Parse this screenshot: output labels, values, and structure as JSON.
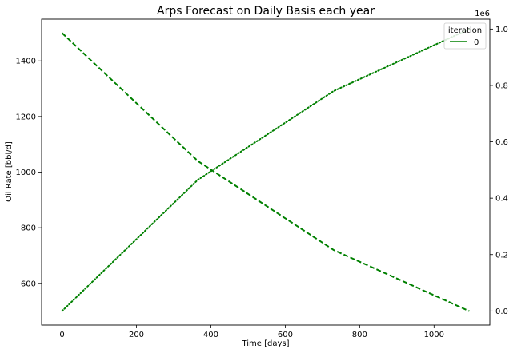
{
  "chart_data": {
    "type": "line",
    "title": "Arps Forecast on Daily Basis each year",
    "xlabel": "Time [days]",
    "ylabel": "Oil Rate [bbl/d]",
    "y2label": "",
    "xlim": [
      -55,
      1150
    ],
    "ylim": [
      450,
      1550
    ],
    "y2lim": [
      -0.05,
      1.035
    ],
    "y2_offset_label": "1e6",
    "xticks": [
      0,
      200,
      400,
      600,
      800,
      1000
    ],
    "yticks": [
      600,
      800,
      1000,
      1200,
      1400
    ],
    "y2ticks": [
      0.0,
      0.2,
      0.4,
      0.6,
      0.8,
      1.0
    ],
    "grid": false,
    "color": "#008000",
    "series": [
      {
        "axis": "left",
        "style": "dashed",
        "x": [
          0,
          365,
          730,
          1095
        ],
        "y": [
          1500,
          1040,
          720,
          500
        ]
      },
      {
        "axis": "right",
        "style": "dotted",
        "x": [
          0,
          365,
          730,
          1095
        ],
        "y": [
          0.0,
          0.465,
          0.78,
          1.0
        ]
      }
    ],
    "legend": {
      "title": "iteration",
      "entries": [
        "0"
      ],
      "placement": "upper right"
    }
  }
}
